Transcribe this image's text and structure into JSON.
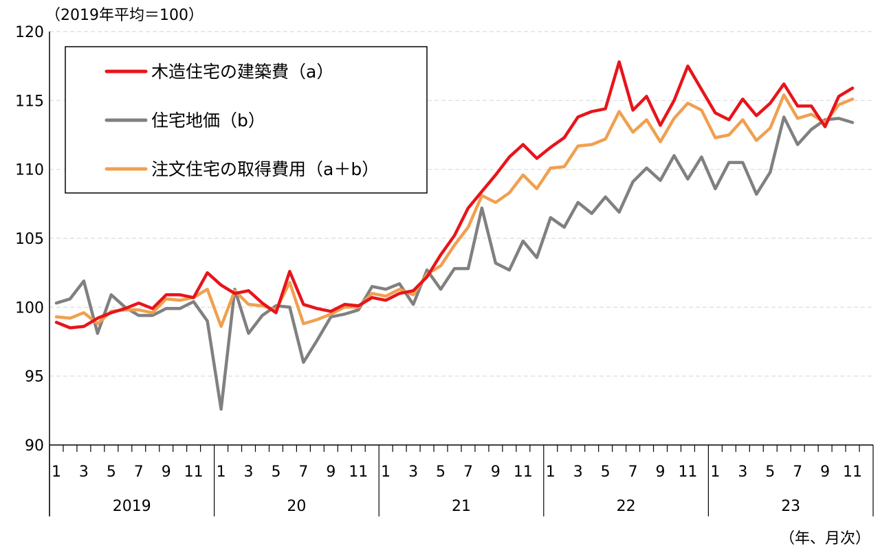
{
  "chart_data": {
    "type": "line",
    "y_unit_label": "（2019年平均＝100）",
    "x_unit_label": "（年、月次）",
    "ylim": [
      90,
      120
    ],
    "yticks": [
      90,
      95,
      100,
      105,
      110,
      115,
      120
    ],
    "grid": true,
    "legend_position": "top-left",
    "month_tick_labels": [
      "1",
      "3",
      "5",
      "7",
      "9",
      "11"
    ],
    "years": [
      "2019",
      "20",
      "21",
      "22",
      "23"
    ],
    "series": [
      {
        "name": "木造住宅の建築費（a）",
        "color": "#e8141b",
        "values": [
          98.9,
          98.5,
          98.6,
          99.2,
          99.6,
          99.9,
          100.3,
          99.9,
          100.9,
          100.9,
          100.7,
          102.5,
          101.6,
          101.0,
          101.2,
          100.3,
          99.6,
          102.6,
          100.2,
          99.9,
          99.7,
          100.2,
          100.1,
          100.7,
          100.5,
          101.0,
          101.2,
          102.2,
          103.8,
          105.2,
          107.2,
          108.4,
          109.6,
          110.9,
          111.8,
          110.8,
          111.6,
          112.3,
          113.8,
          114.2,
          114.4,
          117.8,
          114.3,
          115.3,
          113.2,
          115.0,
          117.5,
          115.8,
          114.1,
          113.6,
          115.1,
          113.9,
          114.8,
          116.2,
          114.6,
          114.6,
          113.1,
          115.3,
          115.9
        ]
      },
      {
        "name": "住宅地価（b）",
        "color": "#808080",
        "values": [
          100.3,
          100.6,
          101.9,
          98.1,
          100.9,
          100.0,
          99.4,
          99.4,
          99.9,
          99.9,
          100.4,
          99.0,
          92.6,
          101.3,
          98.1,
          99.4,
          100.1,
          100.0,
          96.0,
          97.6,
          99.3,
          99.5,
          99.8,
          101.5,
          101.3,
          101.7,
          100.2,
          102.7,
          101.3,
          102.8,
          102.8,
          107.2,
          103.2,
          102.7,
          104.8,
          103.6,
          106.5,
          105.8,
          107.6,
          106.8,
          108.0,
          106.9,
          109.1,
          110.1,
          109.2,
          111.0,
          109.3,
          110.9,
          108.6,
          110.5,
          110.5,
          108.2,
          109.8,
          113.8,
          111.8,
          112.9,
          113.6,
          113.7,
          113.4
        ]
      },
      {
        "name": "注文住宅の取得費用（a＋b）",
        "color": "#f0a050",
        "values": [
          99.3,
          99.2,
          99.6,
          98.8,
          99.7,
          99.8,
          99.8,
          99.6,
          100.6,
          100.5,
          100.7,
          101.3,
          98.6,
          101.2,
          100.2,
          100.1,
          99.8,
          101.8,
          98.8,
          99.1,
          99.5,
          100.0,
          100.0,
          101.0,
          100.8,
          101.3,
          100.9,
          102.4,
          103.0,
          104.5,
          105.8,
          108.1,
          107.6,
          108.3,
          109.6,
          108.6,
          110.1,
          110.2,
          111.7,
          111.8,
          112.2,
          114.2,
          112.7,
          113.6,
          112.0,
          113.7,
          114.8,
          114.3,
          112.3,
          112.5,
          113.6,
          112.1,
          113.0,
          115.4,
          113.7,
          114.0,
          113.4,
          114.7,
          115.1
        ]
      }
    ]
  }
}
